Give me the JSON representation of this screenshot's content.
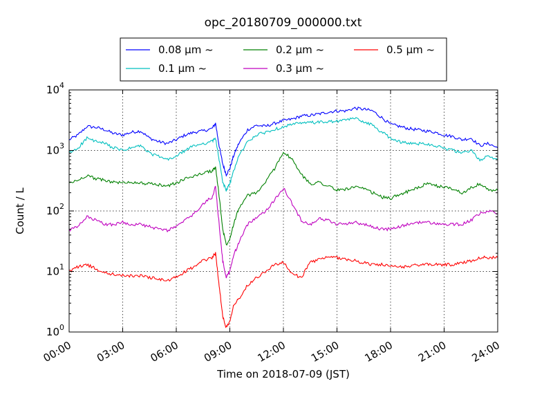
{
  "chart_data": {
    "type": "line",
    "title": "opc_20180709_000000.txt",
    "xlabel": "Time on 2018-07-09 (JST)",
    "ylabel": "Count / L",
    "x_unit": "hours",
    "xlim": [
      0,
      24
    ],
    "ylim": [
      1,
      10000
    ],
    "yscale": "log",
    "grid": true,
    "legend_placement": "top-center",
    "x_tick_labels": [
      "00:00",
      "03:00",
      "06:00",
      "09:00",
      "12:00",
      "15:00",
      "18:00",
      "21:00",
      "24:00"
    ],
    "y_tick_labels": [
      {
        "base": "10",
        "exp": "0"
      },
      {
        "base": "10",
        "exp": "1"
      },
      {
        "base": "10",
        "exp": "2"
      },
      {
        "base": "10",
        "exp": "3"
      },
      {
        "base": "10",
        "exp": "4"
      }
    ],
    "x": [
      0,
      0.5,
      1,
      1.5,
      2,
      2.5,
      3,
      3.5,
      4,
      4.5,
      5,
      5.5,
      6,
      6.5,
      7,
      7.5,
      8,
      8.2,
      8.4,
      8.6,
      8.8,
      9,
      9.2,
      9.5,
      10,
      10.5,
      11,
      11.5,
      12,
      12.5,
      13,
      13.5,
      14,
      14.5,
      15,
      15.5,
      16,
      16.5,
      17,
      17.5,
      18,
      18.5,
      19,
      19.5,
      20,
      20.5,
      21,
      21.5,
      22,
      22.5,
      23,
      23.5,
      24
    ],
    "series": [
      {
        "name": "0.08 μm ~",
        "color": "#0000ff",
        "values": [
          1500,
          1800,
          2500,
          2400,
          2200,
          1900,
          1800,
          2000,
          2100,
          1600,
          1400,
          1300,
          1500,
          1800,
          2000,
          2100,
          2300,
          2800,
          1200,
          600,
          400,
          500,
          800,
          1300,
          2200,
          2600,
          2500,
          2800,
          3100,
          3300,
          3700,
          3800,
          4000,
          4300,
          4500,
          4500,
          5000,
          4800,
          4500,
          3500,
          2700,
          2500,
          2300,
          2200,
          2100,
          2000,
          1800,
          1700,
          1500,
          1600,
          1200,
          1300,
          1100
        ]
      },
      {
        "name": "0.1 μm ~",
        "color": "#00bfbf",
        "values": [
          900,
          1100,
          1600,
          1400,
          1300,
          1100,
          1000,
          1100,
          1200,
          900,
          800,
          700,
          800,
          1000,
          1200,
          1300,
          1400,
          1600,
          700,
          300,
          220,
          280,
          450,
          800,
          1400,
          1800,
          2000,
          2200,
          2500,
          2700,
          2800,
          2900,
          2900,
          3000,
          3000,
          3200,
          3400,
          3000,
          2600,
          2000,
          1600,
          1400,
          1300,
          1300,
          1300,
          1200,
          1100,
          1000,
          900,
          1000,
          700,
          800,
          700
        ]
      },
      {
        "name": "0.2 μm ~",
        "color": "#008000",
        "values": [
          290,
          320,
          390,
          340,
          320,
          300,
          290,
          300,
          290,
          280,
          270,
          260,
          290,
          340,
          380,
          420,
          460,
          520,
          180,
          50,
          28,
          35,
          60,
          110,
          180,
          200,
          300,
          500,
          950,
          700,
          400,
          280,
          300,
          260,
          220,
          230,
          250,
          230,
          200,
          170,
          160,
          190,
          210,
          240,
          280,
          260,
          250,
          230,
          200,
          240,
          280,
          220,
          220
        ]
      },
      {
        "name": "0.3 μm ~",
        "color": "#bf00bf",
        "values": [
          48,
          55,
          80,
          70,
          60,
          60,
          65,
          60,
          60,
          55,
          50,
          48,
          55,
          70,
          90,
          130,
          170,
          250,
          60,
          15,
          8,
          10,
          18,
          30,
          60,
          80,
          100,
          150,
          240,
          130,
          70,
          60,
          75,
          70,
          60,
          62,
          65,
          60,
          55,
          50,
          50,
          55,
          60,
          65,
          65,
          62,
          60,
          60,
          60,
          70,
          90,
          100,
          90
        ]
      },
      {
        "name": "0.5 μm ~",
        "color": "#ff0000",
        "values": [
          10,
          12,
          13,
          11,
          9.5,
          9,
          8.5,
          8.5,
          8.5,
          8,
          7.5,
          7,
          8,
          10,
          12,
          15,
          17,
          20,
          6,
          1.8,
          1.2,
          1.5,
          2.8,
          3.5,
          6,
          8,
          10,
          13,
          14,
          9,
          8,
          14,
          16,
          17,
          17,
          16,
          15,
          14,
          13,
          13,
          12,
          12,
          12,
          13,
          13,
          13,
          13,
          13,
          14,
          15,
          17,
          17,
          17
        ]
      }
    ]
  }
}
